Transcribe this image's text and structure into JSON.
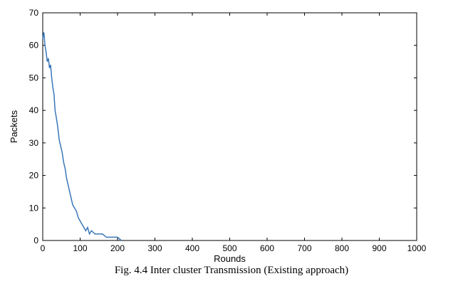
{
  "caption": "Fig. 4.4 Inter cluster Transmission (Existing approach)",
  "chart_data": {
    "type": "line",
    "title": "",
    "xlabel": "Rounds",
    "ylabel": "Packets",
    "xlim": [
      0,
      1000
    ],
    "ylim": [
      0,
      70
    ],
    "xticks": [
      0,
      100,
      200,
      300,
      400,
      500,
      600,
      700,
      800,
      900,
      1000
    ],
    "yticks": [
      0,
      10,
      20,
      30,
      40,
      50,
      60,
      70
    ],
    "grid": false,
    "line_color": "#3a78b8",
    "series": [
      {
        "x": [
          0,
          3,
          6,
          9,
          12,
          15,
          18,
          21,
          24,
          27,
          30,
          33,
          36,
          40,
          44,
          48,
          52,
          56,
          60,
          64,
          68,
          72,
          76,
          80,
          85,
          90,
          95,
          100,
          105,
          110,
          115,
          120,
          125,
          130,
          140,
          150,
          160,
          170,
          180,
          190,
          200,
          210
        ],
        "y": [
          62,
          64,
          60,
          58,
          55,
          56,
          53,
          54,
          50,
          47,
          45,
          40,
          38,
          35,
          31,
          29,
          27,
          24,
          22,
          19,
          17,
          15,
          13,
          11,
          10,
          9,
          7,
          6,
          5,
          4,
          3,
          4,
          2,
          3,
          2,
          2,
          2,
          1,
          1,
          1,
          1,
          0
        ]
      }
    ]
  }
}
